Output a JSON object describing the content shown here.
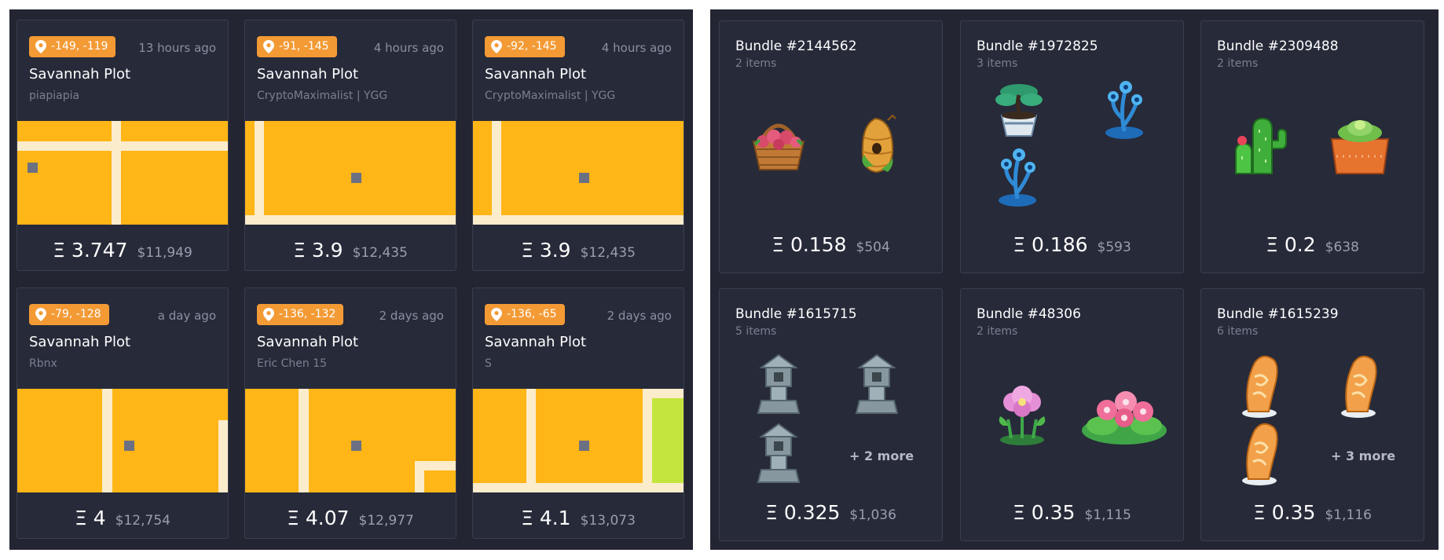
{
  "eth_symbol": "Ξ",
  "colors": {
    "background": "#232533",
    "card": "#272a39",
    "badge": "#f39a35",
    "plot": "#ffb616",
    "road": "#fbeccc",
    "grass": "#c4e53e"
  },
  "icons": {
    "badge": "location-pin-icon"
  },
  "lands": [
    {
      "coords": "-149, -119",
      "time": "13 hours ago",
      "title": "Savannah Plot",
      "owner": "piapiapia",
      "eth": "3.747",
      "usd": "$11,949"
    },
    {
      "coords": "-91, -145",
      "time": "4 hours ago",
      "title": "Savannah Plot",
      "owner": "CryptoMaximalist | YGG",
      "eth": "3.9",
      "usd": "$12,435"
    },
    {
      "coords": "-92, -145",
      "time": "4 hours ago",
      "title": "Savannah Plot",
      "owner": "CryptoMaximalist | YGG",
      "eth": "3.9",
      "usd": "$12,435"
    },
    {
      "coords": "-79, -128",
      "time": "a day ago",
      "title": "Savannah Plot",
      "owner": "Rbnx",
      "eth": "4",
      "usd": "$12,754"
    },
    {
      "coords": "-136, -132",
      "time": "2 days ago",
      "title": "Savannah Plot",
      "owner": "Eric Chen 15",
      "eth": "4.07",
      "usd": "$12,977"
    },
    {
      "coords": "-136, -65",
      "time": "2 days ago",
      "title": "Savannah Plot",
      "owner": "S",
      "eth": "4.1",
      "usd": "$13,073"
    }
  ],
  "bundles": [
    {
      "title": "Bundle #2144562",
      "count": "2 items",
      "eth": "0.158",
      "usd": "$504",
      "items": [
        "flower-basket-icon",
        "beehive-icon"
      ],
      "more": ""
    },
    {
      "title": "Bundle #1972825",
      "count": "3 items",
      "eth": "0.186",
      "usd": "$593",
      "items": [
        "potted-bonsai-icon",
        "blue-flower-icon",
        "blue-flower-icon"
      ],
      "more": ""
    },
    {
      "title": "Bundle #2309488",
      "count": "2 items",
      "eth": "0.2",
      "usd": "$638",
      "items": [
        "cactus-icon",
        "succulent-pot-icon"
      ],
      "more": ""
    },
    {
      "title": "Bundle #1615715",
      "count": "5 items",
      "eth": "0.325",
      "usd": "$1,036",
      "items": [
        "stone-lantern-icon",
        "stone-lantern-icon",
        "stone-lantern-icon"
      ],
      "more": "+ 2 more"
    },
    {
      "title": "Bundle #48306",
      "count": "2 items",
      "eth": "0.35",
      "usd": "$1,115",
      "items": [
        "pink-flower-icon",
        "pink-flower-bush-icon"
      ],
      "more": ""
    },
    {
      "title": "Bundle #1615239",
      "count": "6 items",
      "eth": "0.35",
      "usd": "$1,116",
      "items": [
        "carved-stone-icon",
        "carved-stone-icon",
        "carved-stone-icon"
      ],
      "more": "+ 3 more"
    }
  ]
}
